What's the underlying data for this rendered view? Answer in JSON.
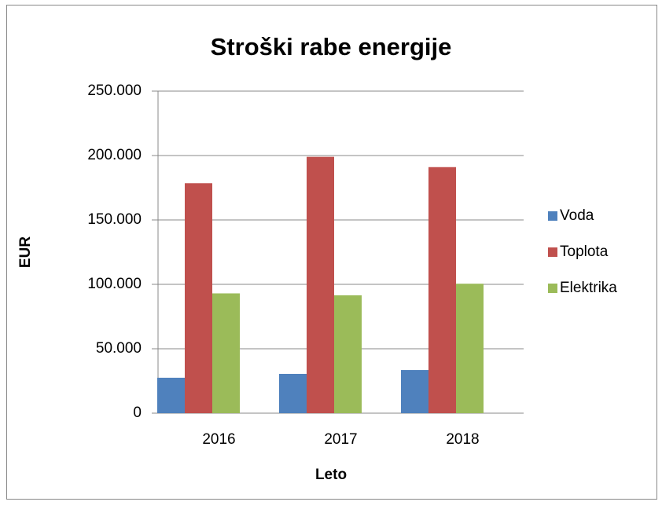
{
  "chart_data": {
    "type": "bar",
    "title": "Stroški rabe energije",
    "x_label": "Leto",
    "y_label": "EUR",
    "categories": [
      "2016",
      "2017",
      "2018"
    ],
    "series": [
      {
        "name": "Voda",
        "color": "#4f81bd",
        "values": [
          27500,
          30500,
          33500
        ]
      },
      {
        "name": "Toplota",
        "color": "#c0504d",
        "values": [
          178500,
          199000,
          191000
        ]
      },
      {
        "name": "Elektrika",
        "color": "#9bbb59",
        "values": [
          93000,
          91500,
          100500
        ]
      }
    ],
    "ylim": [
      0,
      250000
    ],
    "yticks": [
      0,
      {
        "value": 50000,
        "label": "50.000"
      },
      {
        "value": 100000,
        "label": "100.000"
      },
      {
        "value": 150000,
        "label": "150.000"
      },
      {
        "value": 200000,
        "label": "200.000"
      },
      {
        "value": 250000,
        "label": "250.000"
      }
    ],
    "grid": true,
    "legend": "right"
  }
}
